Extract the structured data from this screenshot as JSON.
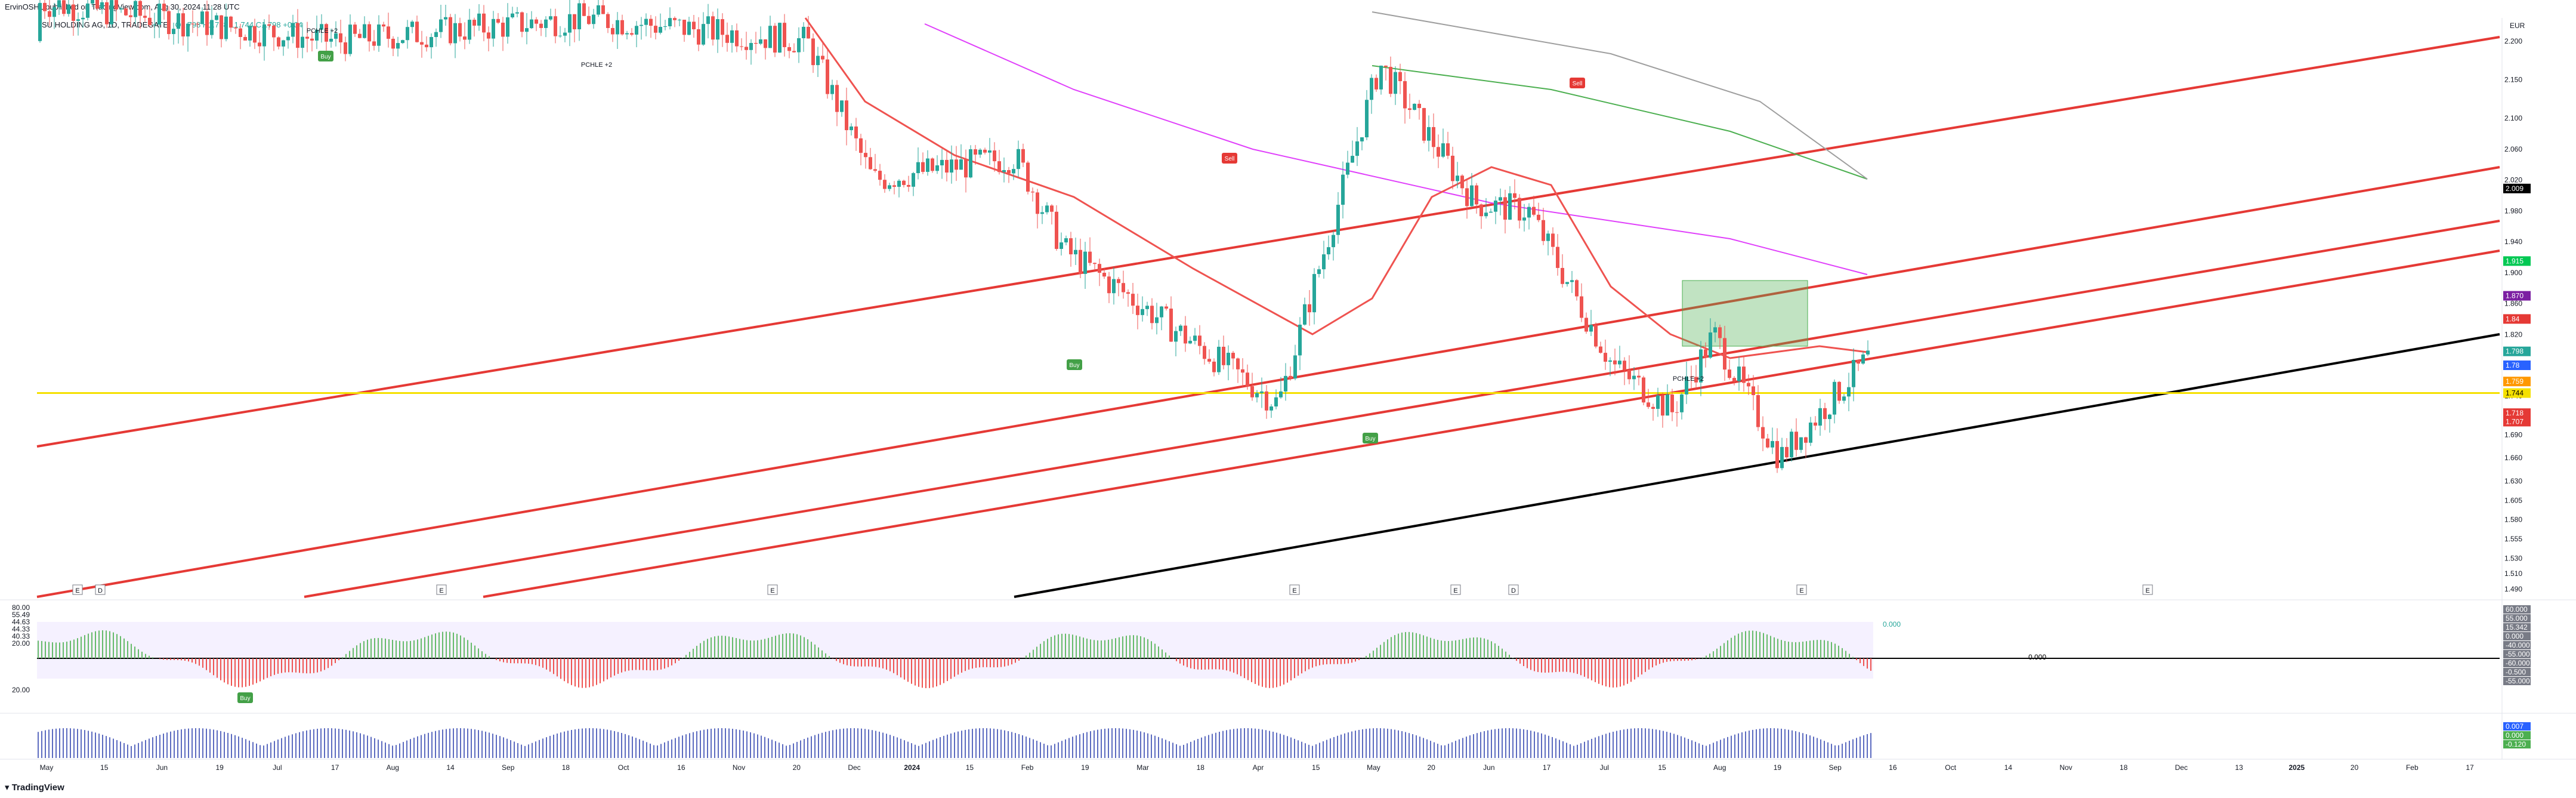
{
  "header": {
    "publisher": "ErvinOSHL published on TradingView.com, Aug 30, 2024 11:28 UTC",
    "symbol": "SU HOLDING AG, 1D, TRADEGATE",
    "ohlc": "O1.798 H1.798 L1.744 C1.798 +0.04",
    "currency": "EUR"
  },
  "footer": {
    "brand": "TradingView"
  },
  "colors": {
    "up": "#26a69a",
    "down": "#ef5350",
    "channel": "#e53935",
    "trend": "#000000",
    "support": "#f5e000",
    "ma_green": "#4caf50",
    "ma_grey": "#9e9e9e",
    "ma_pink": "#e040fb",
    "volume": "#5c6bc0",
    "buy": "#43a047",
    "sell": "#e53935"
  },
  "chart_data": {
    "type": "candlestick",
    "x_axis_labels": [
      "May",
      "15",
      "Jun",
      "19",
      "Jul",
      "17",
      "Aug",
      "14",
      "Sep",
      "18",
      "Oct",
      "16",
      "Nov",
      "20",
      "Dec",
      "2024",
      "15",
      "Feb",
      "19",
      "Mar",
      "18",
      "Apr",
      "15",
      "May",
      "20",
      "Jun",
      "17",
      "Jul",
      "15",
      "Aug",
      "19",
      "Sep",
      "16",
      "Oct",
      "14",
      "Nov",
      "18",
      "Dec",
      "13",
      "2025",
      "20",
      "Feb",
      "17"
    ],
    "y_axis_labels": [
      "2.200",
      "2.150",
      "2.100",
      "2.060",
      "2.020",
      "1.980",
      "1.940",
      "1.900",
      "1.860",
      "1.820",
      "1.780",
      "1.740",
      "1.690",
      "1.660",
      "1.630",
      "1.605",
      "1.580",
      "1.555",
      "1.530",
      "1.510",
      "1.490"
    ],
    "price_tags": [
      {
        "value": "2.009",
        "color": "#000000"
      },
      {
        "value": "1.915",
        "color": "#00c853"
      },
      {
        "value": "1.870",
        "color": "#7b1fa2"
      },
      {
        "value": "1.84",
        "color": "#e53935"
      },
      {
        "value": "1.798",
        "color": "#26a69a"
      },
      {
        "value": "1.78",
        "color": "#2962ff"
      },
      {
        "value": "1.759",
        "color": "#ff9800"
      },
      {
        "value": "1.744",
        "color": "#f5e000"
      },
      {
        "value": "1.718",
        "color": "#e53935"
      },
      {
        "value": "1.707",
        "color": "#e53935"
      }
    ],
    "last_price": "1.798",
    "support_level": 1.744,
    "ylim": [
      1.48,
      2.23
    ],
    "marker_labels": [
      "Buy",
      "Buy",
      "Buy",
      "Buy",
      "Sell",
      "Sell",
      "PCHLE +2",
      "PCHLE +2",
      "PCHLE +2"
    ],
    "event_markers": [
      "E",
      "D",
      "E",
      "E",
      "E",
      "E",
      "D",
      "E",
      "E"
    ],
    "osc_tick_labels": [
      "80.00",
      "55.49",
      "44.63",
      "44.33",
      "40.33",
      "20.00"
    ],
    "osc_right_tags": [
      "60.000",
      "55.000",
      "15.342",
      "0.000",
      "-40.000",
      "-55.000",
      "-60.000",
      "-0.500",
      "-55.000"
    ],
    "vol_right_tags": [
      "0.007",
      "0.000",
      "-0.120"
    ],
    "zero_tag": "0.000",
    "osc_left_tag": "0.000"
  }
}
